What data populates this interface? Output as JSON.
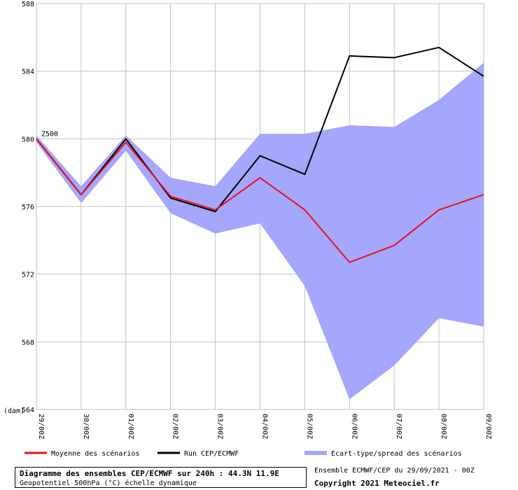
{
  "chart_data": {
    "type": "line",
    "ylabel": "(dam)",
    "ylim": [
      564,
      588
    ],
    "yticks": [
      564,
      568,
      572,
      576,
      580,
      584,
      588
    ],
    "categories": [
      "29/00Z",
      "30/00Z",
      "01/00Z",
      "02/00Z",
      "03/00Z",
      "04/00Z",
      "05/00Z",
      "06/00Z",
      "07/00Z",
      "08/00Z",
      "09/00Z"
    ],
    "annotation": "Z500",
    "series": [
      {
        "name": "Moyenne des scénarios",
        "color": "#e8101e",
        "values": [
          580.0,
          576.7,
          579.8,
          576.6,
          575.8,
          577.7,
          575.8,
          572.7,
          573.7,
          575.8,
          576.7
        ]
      },
      {
        "name": "Run CEP/ECMWF",
        "color": "#000000",
        "values": [
          580.0,
          576.7,
          580.0,
          576.5,
          575.7,
          579.0,
          577.9,
          584.9,
          584.8,
          585.4,
          583.7
        ]
      }
    ],
    "band": {
      "name": "Ecart-type/spread des scénarios",
      "color": "#a4a7fb",
      "upper": [
        580.2,
        577.2,
        580.2,
        577.7,
        577.2,
        580.3,
        580.3,
        580.8,
        580.7,
        582.3,
        584.5
      ],
      "lower": [
        579.8,
        576.2,
        579.3,
        575.6,
        574.4,
        575.0,
        571.3,
        564.6,
        566.6,
        569.4,
        568.9
      ]
    },
    "grid": true
  },
  "footer": {
    "title": "Diagramme des ensembles CEP/ECMWF sur 240h : 44.3N 11.9E",
    "subtitle": "Geopotentiel 500hPa (°C) échelle dynamique",
    "run_info": "Ensemble ECMWF/CEP du 29/09/2021 - 00Z",
    "copyright": "Copyright 2021 Meteociel.fr"
  }
}
